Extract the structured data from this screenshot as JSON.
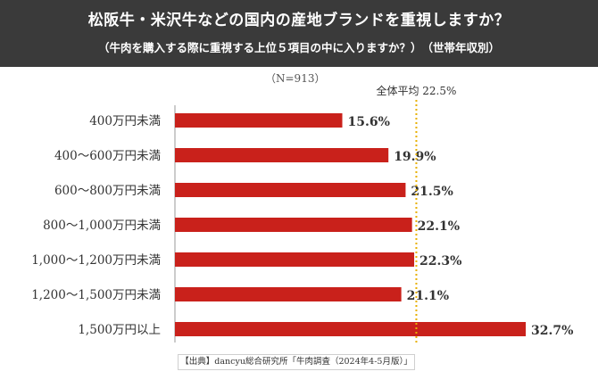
{
  "header": {
    "title": "松阪牛・米沢牛などの国内の産地ブランドを重視しますか？",
    "subtitle": "（牛肉を購入する際に重視する上位５項目の中に入りますか？）　（世帯年収別）"
  },
  "sample_label": "（N=913）",
  "source": "【出典】dancyu総合研究所「牛肉調査（2024年4-5月版）」",
  "colors": {
    "bar": "#c9211b",
    "average_line": "#e8b000",
    "header_bg": "#3a3a3a"
  },
  "chart_data": {
    "type": "bar",
    "orientation": "horizontal",
    "categories": [
      "400万円未満",
      "400〜600万円未満",
      "600〜800万円未満",
      "800〜1,000万円未満",
      "1,000〜1,200万円未満",
      "1,200〜1,500万円未満",
      "1,500万円以上"
    ],
    "values": [
      15.6,
      19.9,
      21.5,
      22.1,
      22.3,
      21.1,
      32.7
    ],
    "value_labels": [
      "15.6%",
      "19.9%",
      "21.5%",
      "22.1%",
      "22.3%",
      "21.1%",
      "32.7%"
    ],
    "average": {
      "label": "全体平均 22.5%",
      "value": 22.5
    },
    "xlim": [
      0,
      35
    ],
    "grid": false
  }
}
